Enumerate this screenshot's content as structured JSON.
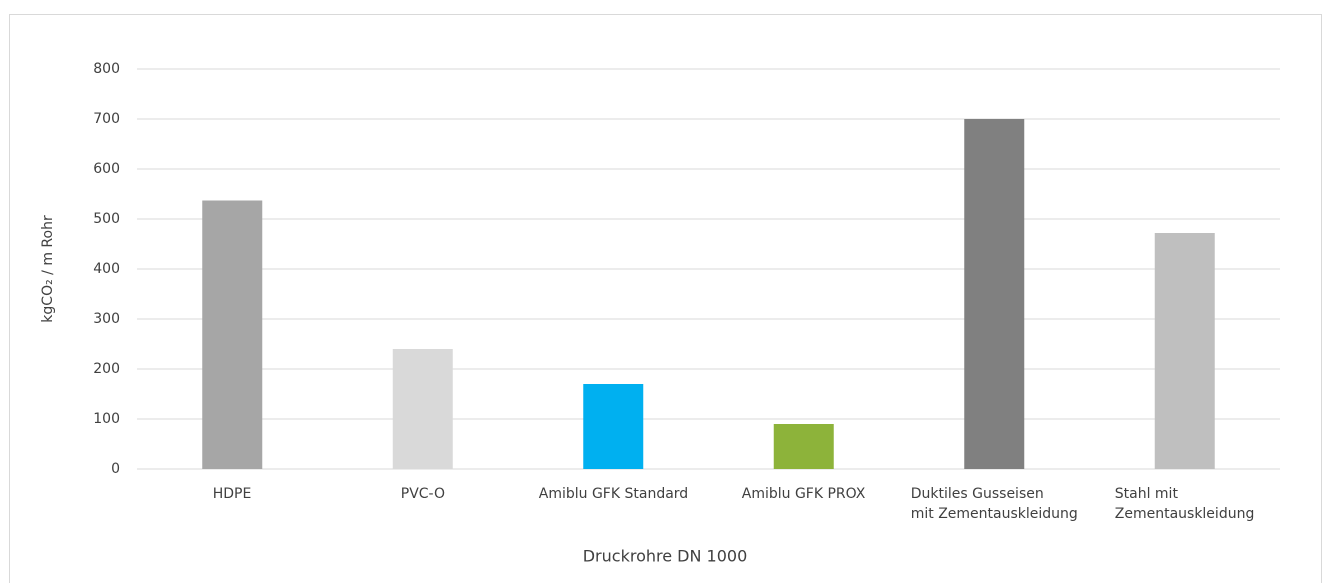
{
  "chart_data": {
    "type": "bar",
    "y_label": "kgCO₂ / m Rohr",
    "x_label": "Druckrohre DN 1000",
    "categories": [
      "HDPE",
      "PVC-O",
      "Amiblu GFK Standard",
      "Amiblu GFK PROX",
      "Duktiles Gusseisen\nmit Zementauskleidung",
      "Stahl mit\nZementauskleidung"
    ],
    "values": [
      537,
      240,
      170,
      90,
      700,
      472
    ],
    "colors": [
      "#a6a6a6",
      "#d9d9d9",
      "#00b0f0",
      "#8db33a",
      "#808080",
      "#bfbfbf"
    ],
    "ylim": [
      0,
      800
    ],
    "yticks": [
      0,
      100,
      200,
      300,
      400,
      500,
      600,
      700,
      800
    ],
    "grid": true
  }
}
